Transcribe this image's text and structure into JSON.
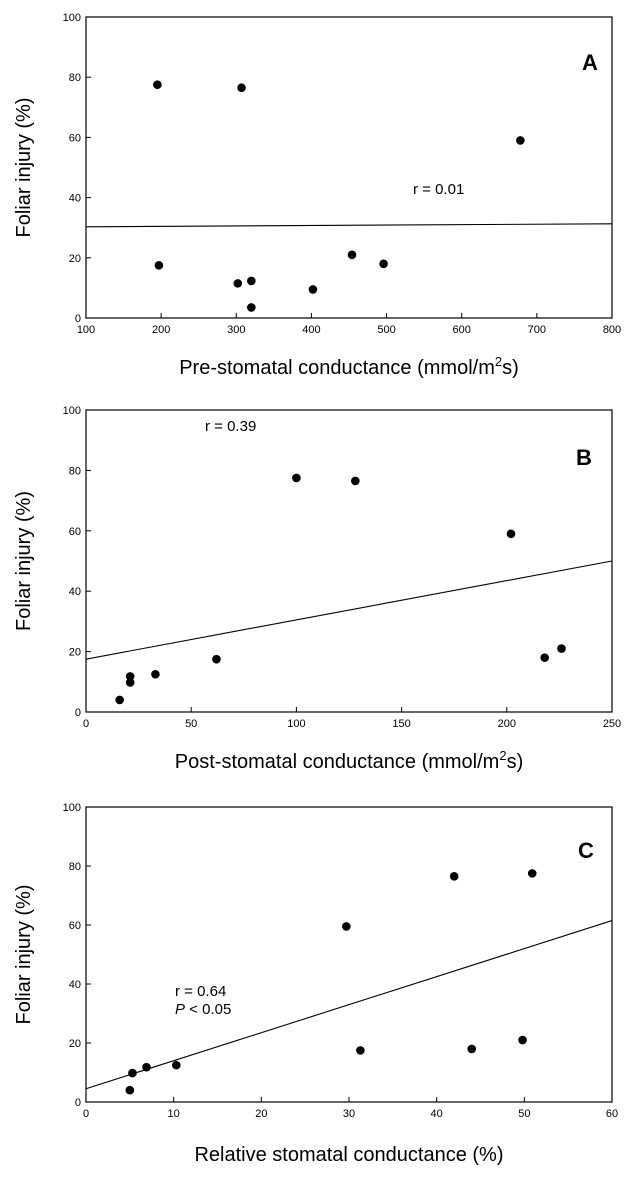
{
  "chart_data": [
    {
      "type": "scatter",
      "panel_label": "A",
      "xlabel": "Pre-stomatal conductance (mmol/m",
      "xlabel_sup": "2",
      "xlabel_tail": "s)",
      "ylabel": "Foliar injury (%)",
      "xlim": [
        100,
        800
      ],
      "ylim": [
        0,
        100
      ],
      "xticks": [
        100,
        200,
        300,
        400,
        500,
        600,
        700,
        800
      ],
      "yticks": [
        0,
        20,
        40,
        60,
        80,
        100
      ],
      "grid": false,
      "annotations": [
        {
          "text": "r = 0.01"
        }
      ],
      "series": [
        {
          "x": [
            195,
            307,
            197,
            302,
            320,
            320,
            402,
            454,
            496,
            678
          ],
          "y": [
            77.5,
            76.5,
            17.5,
            11.5,
            12.3,
            3.5,
            9.5,
            21,
            18,
            59
          ]
        }
      ],
      "fit_line": {
        "x": [
          100,
          800
        ],
        "y": [
          30.3,
          31.3
        ]
      }
    },
    {
      "type": "scatter",
      "panel_label": "B",
      "xlabel": "Post-stomatal conductance (mmol/m",
      "xlabel_sup": "2",
      "xlabel_tail": "s)",
      "ylabel": "Foliar injury (%)",
      "xlim": [
        0,
        250
      ],
      "ylim": [
        0,
        100
      ],
      "xticks": [
        0,
        50,
        100,
        150,
        200,
        250
      ],
      "yticks": [
        0,
        20,
        40,
        60,
        80,
        100
      ],
      "grid": false,
      "annotations": [
        {
          "text": "r = 0.39"
        }
      ],
      "series": [
        {
          "x": [
            16,
            21,
            21,
            33,
            62,
            100,
            128,
            202,
            218,
            226
          ],
          "y": [
            4,
            11.8,
            9.8,
            12.5,
            17.5,
            77.5,
            76.5,
            59,
            18,
            21
          ]
        }
      ],
      "fit_line": {
        "x": [
          0,
          250
        ],
        "y": [
          17.5,
          50
        ]
      }
    },
    {
      "type": "scatter",
      "panel_label": "C",
      "xlabel": "Relative stomatal conductance (%)",
      "ylabel": "Foliar injury (%)",
      "xlim": [
        0,
        60
      ],
      "ylim": [
        0,
        100
      ],
      "xticks": [
        0,
        10,
        20,
        30,
        40,
        50,
        60
      ],
      "yticks": [
        0,
        20,
        40,
        60,
        80,
        100
      ],
      "grid": false,
      "annotations": [
        {
          "text": "r = 0.64"
        },
        {
          "text_italic": "P",
          "text": " < 0.05"
        }
      ],
      "series": [
        {
          "x": [
            5,
            5.3,
            6.9,
            10.3,
            29.7,
            31.3,
            42,
            44,
            49.8,
            50.9
          ],
          "y": [
            4,
            9.8,
            11.8,
            12.5,
            59.5,
            17.5,
            76.5,
            18,
            21,
            77.5
          ]
        }
      ],
      "fit_line": {
        "x": [
          0,
          60
        ],
        "y": [
          4.5,
          61.5
        ]
      }
    }
  ]
}
